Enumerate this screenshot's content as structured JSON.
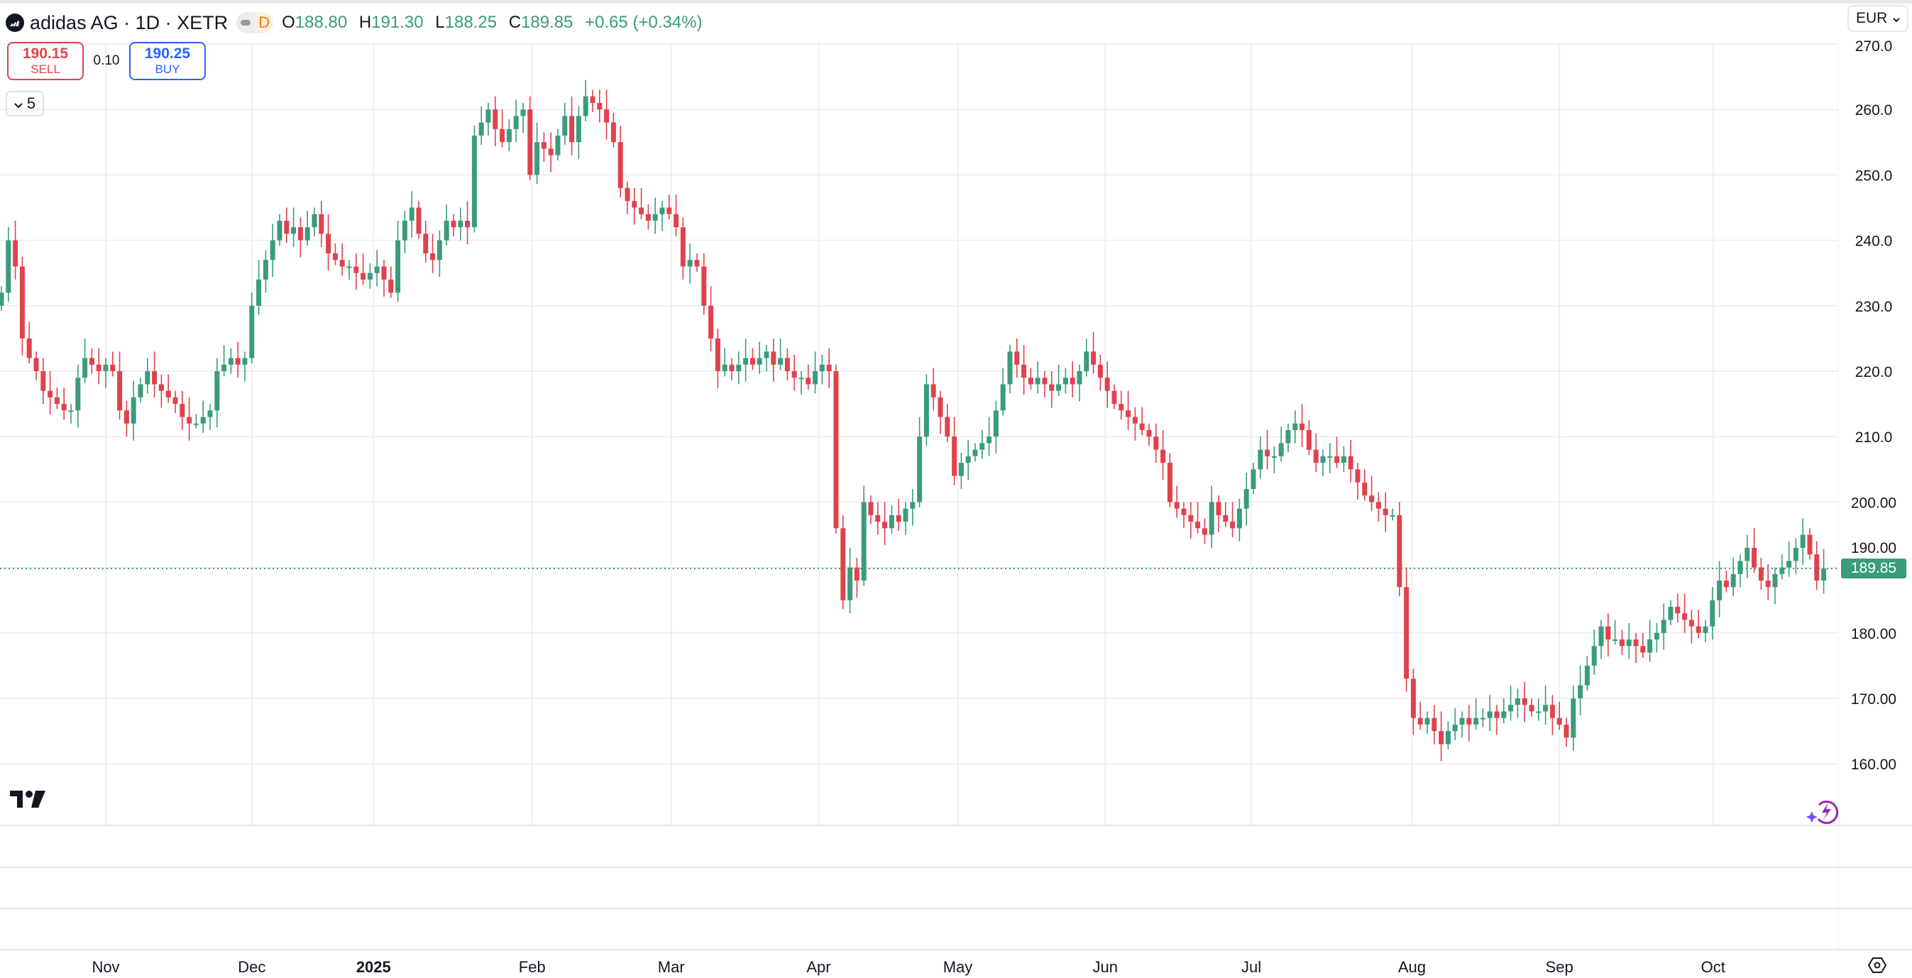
{
  "header": {
    "symbol_title": "adidas AG · 1D · XETR",
    "interval_badge": "D",
    "ohlc": {
      "o_label": "O",
      "o": "188.80",
      "h_label": "H",
      "h": "191.30",
      "l_label": "L",
      "l": "188.25",
      "c_label": "C",
      "c": "189.85",
      "change": "+0.65 (+0.34%)"
    }
  },
  "trade": {
    "sell_price": "190.15",
    "sell_label": "SELL",
    "spread": "0.10",
    "buy_price": "190.25",
    "buy_label": "BUY"
  },
  "collapse_count": "5",
  "currency": "EUR",
  "last_price_label": "189.85",
  "colors": {
    "up": "#3a9b7d",
    "down": "#e0424c",
    "grid": "#f0f0f0",
    "last_line": "#3a9b7d"
  },
  "icons": {
    "logo": "adidas-logo-icon",
    "tv": "tradingview-logo-icon",
    "bolt": "ai-bolt-icon",
    "settings": "settings-hex-icon"
  },
  "chart_data": {
    "type": "candlestick",
    "title": "adidas AG · 1D · XETR",
    "ylabel": "EUR",
    "ylim": [
      155,
      272
    ],
    "y_ticks": [
      "270.0",
      "260.0",
      "250.0",
      "240.0",
      "230.0",
      "220.0",
      "210.0",
      "200.00",
      "190.00",
      "180.00",
      "170.00",
      "160.00"
    ],
    "y_tick_values": [
      270,
      260,
      250,
      240,
      230,
      220,
      210,
      200,
      190,
      180,
      170,
      160
    ],
    "x_ticks": [
      {
        "label": "Nov",
        "index": 15
      },
      {
        "label": "Dec",
        "index": 36
      },
      {
        "label": "2025",
        "index": 53.5
      },
      {
        "label": "Feb",
        "index": 76.3
      },
      {
        "label": "Mar",
        "index": 96.3
      },
      {
        "label": "Apr",
        "index": 117.5
      },
      {
        "label": "May",
        "index": 137.5
      },
      {
        "label": "Jun",
        "index": 158.7
      },
      {
        "label": "Jul",
        "index": 179.7
      },
      {
        "label": "Aug",
        "index": 202.8
      },
      {
        "label": "Sep",
        "index": 224
      },
      {
        "label": "Oct",
        "index": 246.1
      }
    ],
    "first_open": 230,
    "closes": [
      232,
      240,
      236,
      225,
      222,
      220,
      217,
      216,
      215,
      214,
      214,
      219,
      222,
      221,
      220,
      221,
      220,
      214,
      212,
      216,
      218,
      220,
      218,
      217,
      216,
      215,
      213,
      212,
      212,
      213,
      214,
      220,
      221,
      222,
      221,
      222,
      230,
      234,
      237,
      240,
      243,
      241,
      242,
      240,
      242,
      244,
      241,
      238,
      237,
      236,
      236,
      235,
      234,
      235,
      236,
      234,
      232,
      240,
      243,
      245,
      241,
      238,
      237,
      240,
      243,
      242,
      243,
      242,
      256,
      258,
      260,
      257,
      255,
      257,
      259,
      260,
      250,
      255,
      254,
      253,
      256,
      259,
      255,
      259,
      262,
      261,
      260,
      258,
      255,
      248,
      246,
      245,
      244,
      243,
      244,
      245,
      244,
      242,
      236,
      237,
      236,
      230,
      225,
      220,
      221,
      220,
      221,
      222,
      221,
      222,
      223,
      221,
      222,
      220,
      219,
      219,
      218,
      220,
      221,
      220,
      196,
      185,
      190,
      188,
      200,
      198,
      197,
      196,
      198,
      197,
      199,
      200,
      210,
      218,
      216,
      213,
      210,
      204,
      206,
      207,
      208,
      209,
      210,
      214,
      218,
      223,
      221,
      219,
      218,
      219,
      218,
      217,
      218,
      219,
      218,
      220,
      223,
      221,
      219,
      217,
      215,
      214,
      213,
      212,
      211,
      210,
      208,
      206,
      200,
      199,
      198,
      197,
      196,
      195,
      200,
      198,
      197,
      196,
      199,
      202,
      205,
      208,
      207,
      207,
      209,
      211,
      212,
      211,
      208,
      206,
      207,
      207,
      206,
      207,
      205,
      203,
      201,
      200,
      199,
      198,
      198,
      187,
      173,
      167,
      166,
      167,
      165,
      163,
      165,
      166,
      167,
      166,
      167,
      167,
      168,
      167,
      168,
      169,
      170,
      169,
      168,
      168,
      169,
      167,
      166,
      164,
      170,
      172,
      175,
      178,
      181,
      179,
      179,
      178,
      179,
      178,
      177,
      179,
      180,
      182,
      184,
      183,
      182,
      181,
      180,
      181,
      185,
      188,
      187,
      189,
      191,
      193,
      190,
      188,
      187,
      189,
      190,
      191,
      193,
      195,
      192,
      188,
      189.85
    ],
    "last_price": 189.85
  }
}
